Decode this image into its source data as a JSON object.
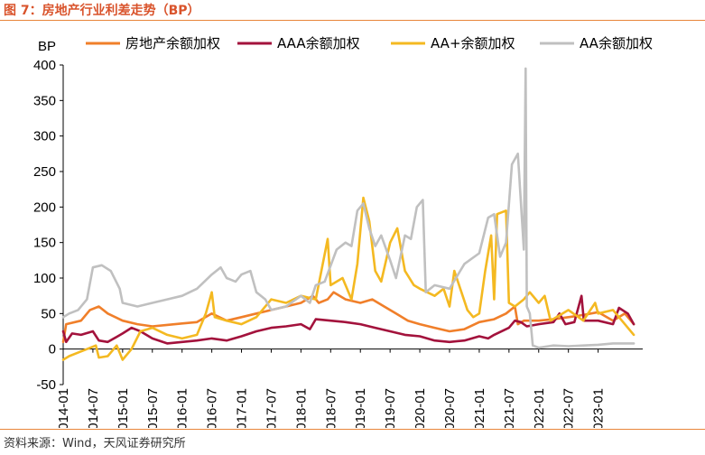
{
  "figure": {
    "title": "图 7：房地产行业利差走势（BP）",
    "source": "资料来源：Wind，天风证券研究所"
  },
  "chart_data": {
    "type": "line",
    "ylabel": "BP",
    "ylim": [
      -50,
      400
    ],
    "yticks": [
      -50,
      0,
      50,
      100,
      150,
      200,
      250,
      300,
      350,
      400
    ],
    "xlim": [
      2014.0,
      2023.75
    ],
    "xtick_labels": [
      "2014-01",
      "2014-07",
      "2015-01",
      "2015-07",
      "2016-01",
      "2016-07",
      "2017-01",
      "2017-07",
      "2018-01",
      "2018-07",
      "2019-01",
      "2019-07",
      "2020-01",
      "2020-07",
      "2021-01",
      "2021-07",
      "2022-01",
      "2022-07",
      "2023-01"
    ],
    "legend_position": "top",
    "series": [
      {
        "name": "房地产余额加权",
        "color": "#f07f2a",
        "points": [
          [
            2014.0,
            10
          ],
          [
            2014.05,
            35
          ],
          [
            2014.3,
            40
          ],
          [
            2014.45,
            55
          ],
          [
            2014.6,
            60
          ],
          [
            2014.75,
            50
          ],
          [
            2015.0,
            40
          ],
          [
            2015.25,
            35
          ],
          [
            2015.5,
            32
          ],
          [
            2015.75,
            34
          ],
          [
            2016.0,
            36
          ],
          [
            2016.25,
            38
          ],
          [
            2016.5,
            50
          ],
          [
            2016.75,
            40
          ],
          [
            2017.0,
            45
          ],
          [
            2017.25,
            50
          ],
          [
            2017.5,
            55
          ],
          [
            2017.75,
            60
          ],
          [
            2018.0,
            65
          ],
          [
            2018.2,
            75
          ],
          [
            2018.3,
            65
          ],
          [
            2018.45,
            70
          ],
          [
            2018.55,
            80
          ],
          [
            2018.75,
            70
          ],
          [
            2019.0,
            65
          ],
          [
            2019.2,
            70
          ],
          [
            2019.4,
            60
          ],
          [
            2019.6,
            50
          ],
          [
            2019.8,
            40
          ],
          [
            2020.0,
            35
          ],
          [
            2020.25,
            30
          ],
          [
            2020.5,
            25
          ],
          [
            2020.75,
            28
          ],
          [
            2021.0,
            38
          ],
          [
            2021.25,
            42
          ],
          [
            2021.45,
            50
          ],
          [
            2021.6,
            60
          ],
          [
            2021.65,
            35
          ],
          [
            2021.75,
            40
          ],
          [
            2022.0,
            40
          ],
          [
            2022.25,
            42
          ],
          [
            2022.5,
            45
          ],
          [
            2022.75,
            48
          ],
          [
            2023.0,
            52
          ],
          [
            2023.25,
            40
          ],
          [
            2023.45,
            50
          ],
          [
            2023.6,
            35
          ]
        ]
      },
      {
        "name": "AAA余额加权",
        "color": "#a3123c",
        "points": [
          [
            2014.0,
            25
          ],
          [
            2014.05,
            10
          ],
          [
            2014.15,
            22
          ],
          [
            2014.3,
            20
          ],
          [
            2014.5,
            25
          ],
          [
            2014.6,
            12
          ],
          [
            2014.75,
            10
          ],
          [
            2015.0,
            22
          ],
          [
            2015.15,
            30
          ],
          [
            2015.3,
            25
          ],
          [
            2015.5,
            15
          ],
          [
            2015.75,
            8
          ],
          [
            2016.0,
            10
          ],
          [
            2016.25,
            12
          ],
          [
            2016.5,
            15
          ],
          [
            2016.75,
            12
          ],
          [
            2017.0,
            18
          ],
          [
            2017.25,
            25
          ],
          [
            2017.5,
            30
          ],
          [
            2017.75,
            32
          ],
          [
            2018.0,
            35
          ],
          [
            2018.15,
            28
          ],
          [
            2018.25,
            42
          ],
          [
            2018.5,
            40
          ],
          [
            2018.75,
            38
          ],
          [
            2019.0,
            35
          ],
          [
            2019.25,
            30
          ],
          [
            2019.5,
            25
          ],
          [
            2019.75,
            20
          ],
          [
            2020.0,
            18
          ],
          [
            2020.25,
            12
          ],
          [
            2020.5,
            10
          ],
          [
            2020.75,
            12
          ],
          [
            2021.0,
            18
          ],
          [
            2021.15,
            15
          ],
          [
            2021.25,
            20
          ],
          [
            2021.5,
            30
          ],
          [
            2021.6,
            40
          ],
          [
            2021.7,
            38
          ],
          [
            2021.8,
            32
          ],
          [
            2022.0,
            35
          ],
          [
            2022.25,
            38
          ],
          [
            2022.35,
            50
          ],
          [
            2022.45,
            35
          ],
          [
            2022.6,
            38
          ],
          [
            2022.72,
            75
          ],
          [
            2022.76,
            40
          ],
          [
            2023.0,
            40
          ],
          [
            2023.25,
            35
          ],
          [
            2023.35,
            58
          ],
          [
            2023.5,
            50
          ],
          [
            2023.6,
            35
          ]
        ]
      },
      {
        "name": "AA+余额加权",
        "color": "#f4b921",
        "points": [
          [
            2014.0,
            -15
          ],
          [
            2014.1,
            -10
          ],
          [
            2014.25,
            -5
          ],
          [
            2014.4,
            0
          ],
          [
            2014.55,
            5
          ],
          [
            2014.6,
            -12
          ],
          [
            2014.75,
            -10
          ],
          [
            2014.9,
            5
          ],
          [
            2015.0,
            -15
          ],
          [
            2015.15,
            0
          ],
          [
            2015.3,
            25
          ],
          [
            2015.5,
            30
          ],
          [
            2015.75,
            20
          ],
          [
            2016.0,
            15
          ],
          [
            2016.25,
            20
          ],
          [
            2016.4,
            50
          ],
          [
            2016.5,
            80
          ],
          [
            2016.55,
            45
          ],
          [
            2016.75,
            40
          ],
          [
            2017.0,
            35
          ],
          [
            2017.25,
            45
          ],
          [
            2017.5,
            70
          ],
          [
            2017.75,
            65
          ],
          [
            2018.0,
            75
          ],
          [
            2018.25,
            70
          ],
          [
            2018.45,
            155
          ],
          [
            2018.5,
            90
          ],
          [
            2018.7,
            100
          ],
          [
            2018.85,
            70
          ],
          [
            2018.95,
            120
          ],
          [
            2019.05,
            213
          ],
          [
            2019.15,
            180
          ],
          [
            2019.25,
            110
          ],
          [
            2019.35,
            95
          ],
          [
            2019.5,
            150
          ],
          [
            2019.62,
            170
          ],
          [
            2019.75,
            110
          ],
          [
            2019.9,
            90
          ],
          [
            2020.0,
            85
          ],
          [
            2020.25,
            75
          ],
          [
            2020.4,
            85
          ],
          [
            2020.5,
            60
          ],
          [
            2020.58,
            110
          ],
          [
            2020.7,
            80
          ],
          [
            2020.8,
            55
          ],
          [
            2020.9,
            45
          ],
          [
            2021.0,
            50
          ],
          [
            2021.1,
            110
          ],
          [
            2021.2,
            160
          ],
          [
            2021.25,
            70
          ],
          [
            2021.3,
            190
          ],
          [
            2021.45,
            195
          ],
          [
            2021.5,
            65
          ],
          [
            2021.6,
            60
          ],
          [
            2021.75,
            70
          ],
          [
            2021.85,
            80
          ],
          [
            2022.0,
            65
          ],
          [
            2022.1,
            75
          ],
          [
            2022.2,
            40
          ],
          [
            2022.5,
            55
          ],
          [
            2022.75,
            40
          ],
          [
            2022.95,
            65
          ],
          [
            2023.0,
            50
          ],
          [
            2023.25,
            55
          ],
          [
            2023.45,
            35
          ],
          [
            2023.6,
            20
          ]
        ]
      },
      {
        "name": "AA余额加权",
        "color": "#c0c0c0",
        "points": [
          [
            2014.0,
            45
          ],
          [
            2014.1,
            50
          ],
          [
            2014.25,
            55
          ],
          [
            2014.4,
            70
          ],
          [
            2014.5,
            115
          ],
          [
            2014.65,
            118
          ],
          [
            2014.8,
            110
          ],
          [
            2014.95,
            85
          ],
          [
            2015.0,
            65
          ],
          [
            2015.25,
            60
          ],
          [
            2015.5,
            65
          ],
          [
            2015.75,
            70
          ],
          [
            2016.0,
            75
          ],
          [
            2016.25,
            85
          ],
          [
            2016.5,
            105
          ],
          [
            2016.65,
            115
          ],
          [
            2016.75,
            100
          ],
          [
            2016.9,
            95
          ],
          [
            2017.0,
            105
          ],
          [
            2017.15,
            110
          ],
          [
            2017.25,
            80
          ],
          [
            2017.4,
            70
          ],
          [
            2017.5,
            55
          ],
          [
            2017.75,
            60
          ],
          [
            2018.0,
            75
          ],
          [
            2018.15,
            65
          ],
          [
            2018.25,
            90
          ],
          [
            2018.4,
            95
          ],
          [
            2018.6,
            140
          ],
          [
            2018.75,
            150
          ],
          [
            2018.85,
            145
          ],
          [
            2018.95,
            195
          ],
          [
            2019.05,
            205
          ],
          [
            2019.15,
            170
          ],
          [
            2019.25,
            145
          ],
          [
            2019.35,
            160
          ],
          [
            2019.5,
            125
          ],
          [
            2019.6,
            100
          ],
          [
            2019.75,
            160
          ],
          [
            2019.85,
            155
          ],
          [
            2019.95,
            200
          ],
          [
            2020.05,
            210
          ],
          [
            2020.1,
            80
          ],
          [
            2020.25,
            90
          ],
          [
            2020.5,
            85
          ],
          [
            2020.75,
            120
          ],
          [
            2021.0,
            135
          ],
          [
            2021.15,
            185
          ],
          [
            2021.25,
            190
          ],
          [
            2021.35,
            130
          ],
          [
            2021.45,
            150
          ],
          [
            2021.55,
            260
          ],
          [
            2021.65,
            275
          ],
          [
            2021.75,
            140
          ],
          [
            2021.78,
            395
          ],
          [
            2021.8,
            60
          ],
          [
            2021.85,
            50
          ],
          [
            2021.9,
            5
          ],
          [
            2022.0,
            2
          ],
          [
            2022.25,
            5
          ],
          [
            2022.5,
            4
          ],
          [
            2022.75,
            5
          ],
          [
            2023.0,
            6
          ],
          [
            2023.25,
            8
          ],
          [
            2023.6,
            8
          ]
        ]
      }
    ]
  }
}
